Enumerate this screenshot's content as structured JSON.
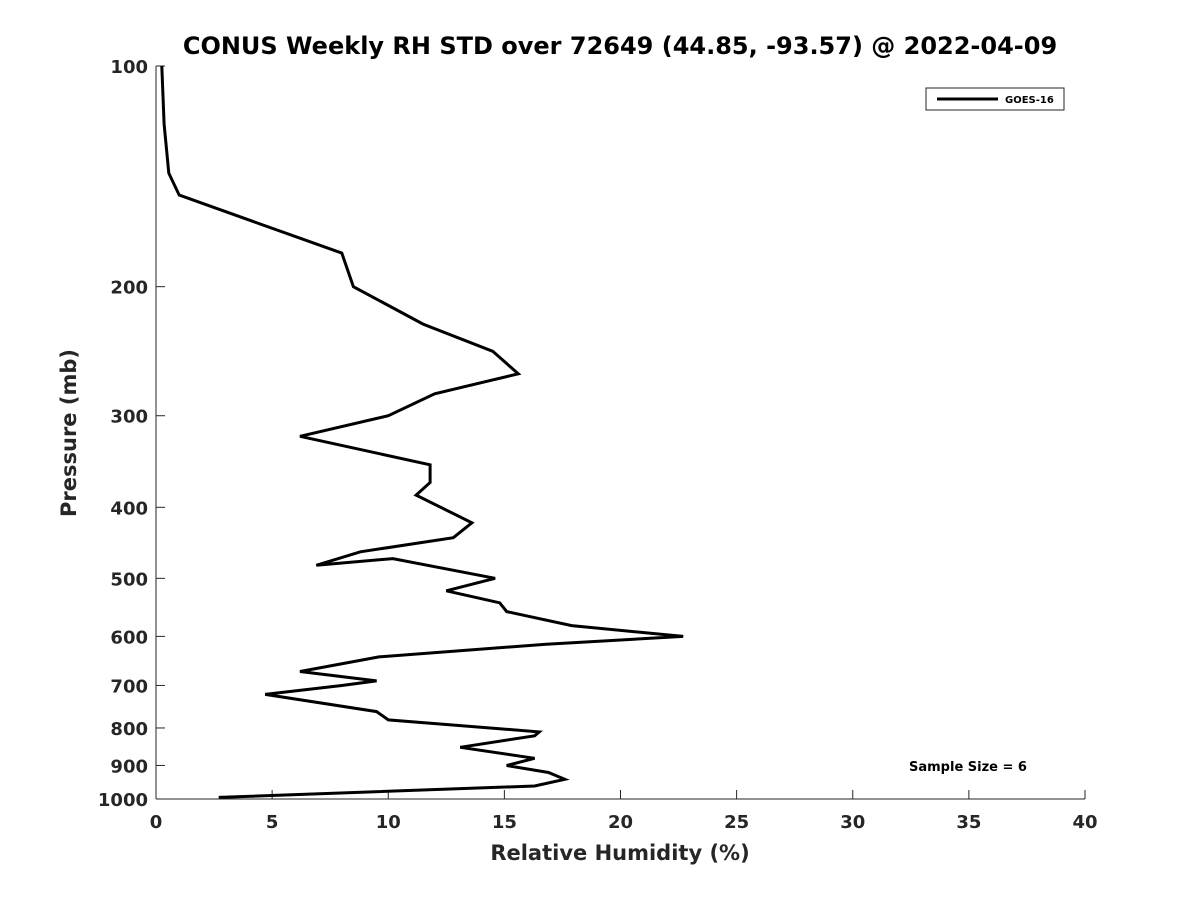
{
  "chart_data": {
    "type": "line",
    "title": "CONUS Weekly RH STD over 72649 (44.85, -93.57) @ 2022-04-09",
    "xlabel": "Relative Humidity (%)",
    "ylabel": "Pressure (mb)",
    "xlim": [
      0,
      40
    ],
    "ylim": [
      100,
      1000
    ],
    "yscale": "log",
    "x_ticks": [
      0,
      5,
      10,
      15,
      20,
      25,
      30,
      35,
      40
    ],
    "x_tick_labels": [
      "0",
      "5",
      "10",
      "15",
      "20",
      "25",
      "30",
      "35",
      "40"
    ],
    "y_ticks": [
      100,
      200,
      300,
      400,
      500,
      600,
      700,
      800,
      900,
      1000
    ],
    "y_tick_labels": [
      "100",
      "200",
      "300",
      "400",
      "500",
      "600",
      "700",
      "800",
      "900",
      "1000"
    ],
    "grid": false,
    "legend_position": "top-right",
    "series": [
      {
        "name": "GOES-16",
        "color": "#000000",
        "x": [
          0.25,
          0.35,
          0.55,
          1.0,
          8.0,
          8.5,
          11.5,
          14.5,
          15.6,
          12.0,
          10.0,
          6.2,
          11.8,
          11.8,
          11.2,
          13.6,
          12.8,
          8.8,
          6.9,
          10.2,
          14.6,
          12.5,
          14.8,
          15.1,
          17.9,
          22.7,
          16.8,
          9.6,
          6.2,
          9.5,
          8.0,
          4.7,
          9.5,
          10.0,
          16.5,
          16.3,
          13.1,
          16.3,
          15.1,
          16.9,
          17.6,
          16.3,
          2.7
        ],
        "y": [
          100,
          120,
          140,
          150,
          180,
          200,
          225,
          245,
          263,
          280,
          300,
          320,
          350,
          370,
          385,
          420,
          440,
          460,
          480,
          470,
          500,
          520,
          540,
          555,
          580,
          600,
          615,
          640,
          670,
          690,
          700,
          720,
          760,
          780,
          810,
          820,
          850,
          880,
          900,
          920,
          940,
          960,
          995
        ]
      }
    ],
    "annotations": [
      "Sample Size = 6"
    ]
  }
}
